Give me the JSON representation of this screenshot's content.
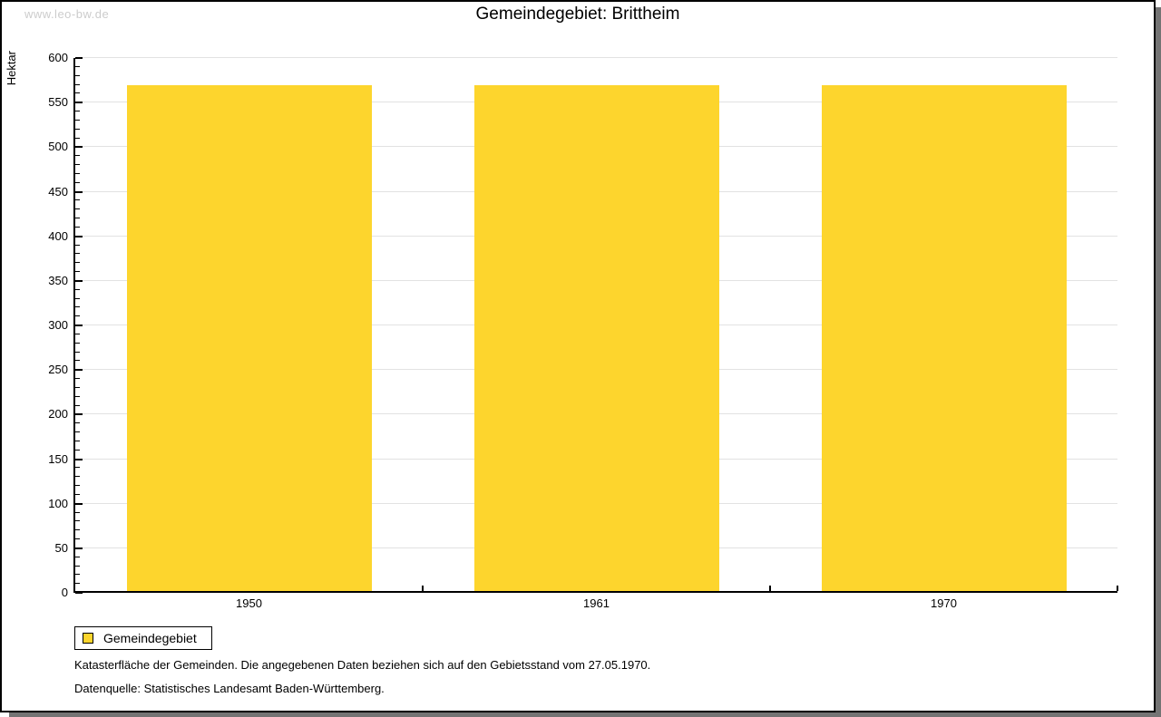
{
  "watermark": "www.leo-bw.de",
  "title": "Gemeindegebiet: Brittheim",
  "chart_data": {
    "type": "bar",
    "title": "Gemeindegebiet: Brittheim",
    "categories": [
      "1950",
      "1961",
      "1970"
    ],
    "series": [
      {
        "name": "Gemeindegebiet",
        "color": "#fdd52d",
        "values": [
          567,
          567,
          567
        ]
      }
    ],
    "xlabel": "",
    "ylabel": "Hektar",
    "ylim": [
      0,
      600
    ],
    "y_major_step": 50,
    "y_minor_step": 10,
    "grid": true,
    "legend_position": "bottom-left"
  },
  "colors": {
    "bar_fill": "#fdd52d",
    "gridline": "#e2e2e2",
    "axis": "#000000",
    "watermark": "#cccccc",
    "frame_shadow": "#747474"
  },
  "footnotes": [
    "Katasterfläche der Gemeinden. Die angegebenen Daten beziehen sich auf den Gebietsstand vom 27.05.1970.",
    "Datenquelle: Statistisches Landesamt Baden-Württemberg."
  ]
}
